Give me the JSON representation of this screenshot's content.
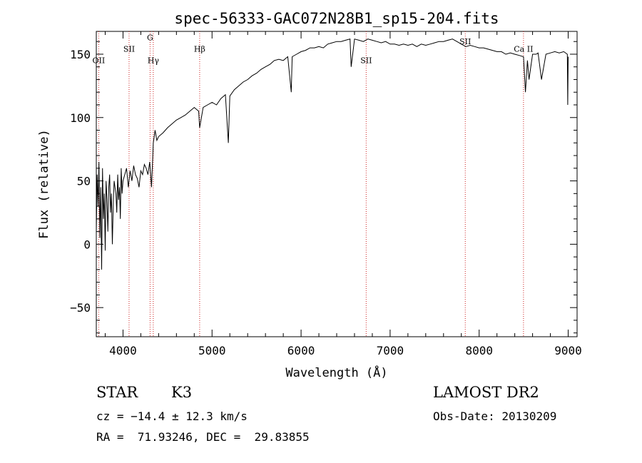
{
  "chart_data": {
    "type": "line",
    "title": "spec-56333-GAC072N28B1_sp15-204.fits",
    "xlabel": "Wavelength (Å)",
    "ylabel": "Flux (relative)",
    "xlim": [
      3700,
      9100
    ],
    "ylim": [
      -73,
      168
    ],
    "xticks": [
      4000,
      5000,
      6000,
      7000,
      8000,
      9000
    ],
    "yticks": [
      -50,
      0,
      50,
      100,
      150
    ],
    "line_color": "#000000",
    "marker_color": "#cc2222",
    "series": [
      {
        "x": [
          3700,
          3710,
          3720,
          3730,
          3740,
          3750,
          3760,
          3770,
          3780,
          3790,
          3800,
          3810,
          3820,
          3830,
          3840,
          3850,
          3860,
          3870,
          3880,
          3890,
          3900,
          3910,
          3920,
          3930,
          3940,
          3950,
          3960,
          3970,
          3980,
          3990,
          4000,
          4020,
          4040,
          4060,
          4080,
          4100,
          4120,
          4140,
          4160,
          4180,
          4200,
          4220,
          4240,
          4260,
          4280,
          4300,
          4320,
          4340,
          4360,
          4380,
          4400,
          4450,
          4500,
          4550,
          4600,
          4650,
          4700,
          4750,
          4800,
          4850,
          4861,
          4900,
          4950,
          5000,
          5050,
          5100,
          5150,
          5183,
          5200,
          5250,
          5300,
          5350,
          5400,
          5450,
          5500,
          5550,
          5600,
          5650,
          5700,
          5750,
          5800,
          5850,
          5890,
          5900,
          5950,
          6000,
          6050,
          6100,
          6150,
          6200,
          6250,
          6300,
          6350,
          6400,
          6450,
          6500,
          6550,
          6563,
          6600,
          6650,
          6700,
          6750,
          6800,
          6850,
          6900,
          6950,
          7000,
          7050,
          7100,
          7150,
          7200,
          7250,
          7300,
          7350,
          7400,
          7450,
          7500,
          7550,
          7600,
          7650,
          7700,
          7750,
          7800,
          7850,
          7900,
          7950,
          8000,
          8050,
          8100,
          8150,
          8200,
          8250,
          8300,
          8350,
          8400,
          8450,
          8498,
          8520,
          8542,
          8560,
          8600,
          8640,
          8662,
          8700,
          8750,
          8800,
          8850,
          8900,
          8950,
          8990,
          8995,
          9000
        ],
        "y": [
          10,
          55,
          30,
          65,
          5,
          45,
          -20,
          60,
          20,
          40,
          -5,
          50,
          35,
          10,
          45,
          55,
          25,
          40,
          0,
          30,
          50,
          45,
          40,
          25,
          55,
          35,
          45,
          20,
          60,
          40,
          50,
          55,
          60,
          45,
          58,
          50,
          62,
          55,
          52,
          45,
          58,
          55,
          63,
          60,
          55,
          65,
          45,
          80,
          90,
          82,
          85,
          88,
          92,
          95,
          98,
          100,
          102,
          105,
          108,
          105,
          92,
          108,
          110,
          112,
          110,
          115,
          118,
          80,
          117,
          122,
          125,
          128,
          130,
          133,
          135,
          138,
          140,
          142,
          145,
          146,
          145,
          148,
          120,
          148,
          150,
          152,
          153,
          155,
          155,
          156,
          155,
          158,
          159,
          160,
          160,
          161,
          162,
          140,
          162,
          161,
          160,
          162,
          161,
          160,
          159,
          160,
          158,
          158,
          157,
          158,
          157,
          158,
          156,
          158,
          157,
          158,
          159,
          160,
          160,
          161,
          162,
          160,
          158,
          156,
          157,
          156,
          155,
          155,
          154,
          153,
          152,
          152,
          150,
          151,
          150,
          149,
          148,
          120,
          145,
          130,
          150,
          150,
          151,
          130,
          150,
          151,
          152,
          151,
          152,
          150,
          110,
          148
        ]
      }
    ],
    "line_markers": [
      {
        "x": 3727,
        "label": "OII",
        "label_y": 143
      },
      {
        "x": 4068,
        "label": "SII",
        "label_y": 152
      },
      {
        "x": 4304,
        "label": "G",
        "label_y": 161
      },
      {
        "x": 4340,
        "label": "Hγ",
        "label_y": 143
      },
      {
        "x": 4861,
        "label": "Hβ",
        "label_y": 152
      },
      {
        "x": 6731,
        "label": "SII",
        "label_y": 143
      },
      {
        "x": 7844,
        "label": "SII",
        "label_y": 158
      },
      {
        "x": 8498,
        "label": "Ca II",
        "label_y": 152
      }
    ]
  },
  "footer": {
    "object_class": "STAR",
    "subclass": "K3",
    "survey": "LAMOST DR2",
    "redshift_line": "cz = −14.4 ± 12.3 km/s",
    "obs_date_line": "Obs-Date: 20130209",
    "coords_line": "RA =  71.93246, DEC =  29.83855"
  }
}
